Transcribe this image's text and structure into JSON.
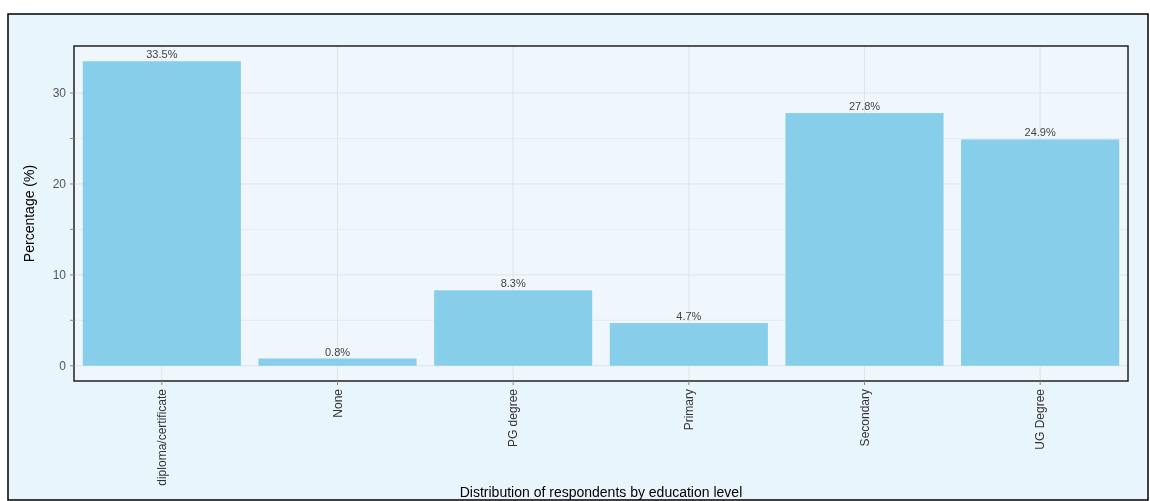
{
  "chart_data": {
    "type": "bar",
    "xlabel": "Distribution of respondents by education level",
    "ylabel": "Percentage (%)",
    "categories": [
      "diploma/certificate",
      "None",
      "PG degree",
      "Primary",
      "Secondary",
      "UG Degree"
    ],
    "values": [
      33.5,
      0.8,
      8.3,
      4.7,
      27.8,
      24.9
    ],
    "value_labels": [
      "33.5%",
      "0.8%",
      "8.3%",
      "4.7%",
      "27.8%",
      "24.9%"
    ],
    "color": "#87ceeb",
    "ylim": [
      -1.675,
      35.175
    ],
    "yticks": [
      0,
      {
        "value": 5,
        "label": null
      },
      10,
      {
        "value": 15,
        "label": null
      },
      20,
      {
        "value": 25,
        "label": null
      },
      30
    ],
    "grid": true
  }
}
